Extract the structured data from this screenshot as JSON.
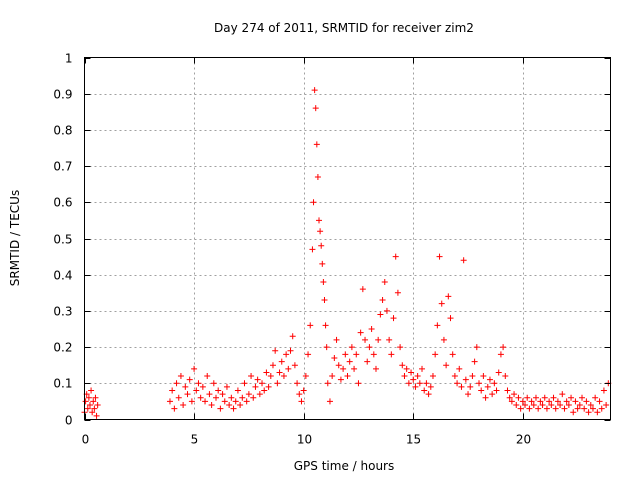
{
  "chart_data": {
    "type": "scatter",
    "title": "Day 274 of 2011, SRMTID for receiver zim2",
    "xlabel": "GPS time / hours",
    "ylabel": "SRMTID / TECUs",
    "xlim": [
      0,
      24
    ],
    "ylim": [
      0,
      1
    ],
    "x_ticks": [
      0,
      5,
      10,
      15,
      20
    ],
    "y_ticks": [
      0,
      0.1,
      0.2,
      0.3,
      0.4,
      0.5,
      0.6,
      0.7,
      0.8,
      0.9,
      1
    ],
    "y_tick_labels": [
      "0",
      "0.1",
      "0.2",
      "0.3",
      "0.4",
      "0.5",
      "0.6",
      "0.7",
      "0.8",
      "0.9",
      "1"
    ],
    "x_tick_labels": [
      "0",
      "5",
      "10",
      "15",
      "20"
    ],
    "grid": true,
    "marker": "+",
    "marker_color": "#ff0000",
    "series": [
      {
        "name": "zim2",
        "points": [
          [
            0.0,
            0.02
          ],
          [
            0.05,
            0.05
          ],
          [
            0.1,
            0.07
          ],
          [
            0.15,
            0.03
          ],
          [
            0.2,
            0.06
          ],
          [
            0.25,
            0.04
          ],
          [
            0.3,
            0.08
          ],
          [
            0.35,
            0.02
          ],
          [
            0.4,
            0.05
          ],
          [
            0.45,
            0.03
          ],
          [
            0.5,
            0.06
          ],
          [
            0.55,
            0.01
          ],
          [
            0.6,
            0.04
          ],
          [
            3.9,
            0.05
          ],
          [
            4.0,
            0.08
          ],
          [
            4.1,
            0.03
          ],
          [
            4.2,
            0.1
          ],
          [
            4.3,
            0.06
          ],
          [
            4.4,
            0.12
          ],
          [
            4.5,
            0.04
          ],
          [
            4.6,
            0.09
          ],
          [
            4.7,
            0.07
          ],
          [
            4.8,
            0.11
          ],
          [
            4.9,
            0.05
          ],
          [
            5.0,
            0.14
          ],
          [
            5.1,
            0.08
          ],
          [
            5.2,
            0.1
          ],
          [
            5.3,
            0.06
          ],
          [
            5.4,
            0.09
          ],
          [
            5.5,
            0.05
          ],
          [
            5.6,
            0.12
          ],
          [
            5.7,
            0.07
          ],
          [
            5.8,
            0.04
          ],
          [
            5.9,
            0.1
          ],
          [
            6.0,
            0.06
          ],
          [
            6.1,
            0.08
          ],
          [
            6.2,
            0.03
          ],
          [
            6.3,
            0.07
          ],
          [
            6.4,
            0.05
          ],
          [
            6.5,
            0.09
          ],
          [
            6.6,
            0.04
          ],
          [
            6.7,
            0.06
          ],
          [
            6.8,
            0.03
          ],
          [
            6.9,
            0.05
          ],
          [
            7.0,
            0.08
          ],
          [
            7.1,
            0.04
          ],
          [
            7.2,
            0.06
          ],
          [
            7.3,
            0.1
          ],
          [
            7.4,
            0.05
          ],
          [
            7.5,
            0.07
          ],
          [
            7.6,
            0.12
          ],
          [
            7.7,
            0.06
          ],
          [
            7.8,
            0.09
          ],
          [
            7.9,
            0.11
          ],
          [
            8.0,
            0.07
          ],
          [
            8.1,
            0.1
          ],
          [
            8.2,
            0.08
          ],
          [
            8.3,
            0.13
          ],
          [
            8.4,
            0.09
          ],
          [
            8.5,
            0.12
          ],
          [
            8.6,
            0.15
          ],
          [
            8.7,
            0.19
          ],
          [
            8.8,
            0.1
          ],
          [
            8.9,
            0.13
          ],
          [
            9.0,
            0.16
          ],
          [
            9.1,
            0.12
          ],
          [
            9.2,
            0.18
          ],
          [
            9.3,
            0.14
          ],
          [
            9.4,
            0.19
          ],
          [
            9.5,
            0.23
          ],
          [
            9.6,
            0.15
          ],
          [
            9.7,
            0.1
          ],
          [
            9.8,
            0.07
          ],
          [
            9.9,
            0.05
          ],
          [
            10.0,
            0.08
          ],
          [
            10.1,
            0.12
          ],
          [
            10.2,
            0.18
          ],
          [
            10.3,
            0.26
          ],
          [
            10.4,
            0.47
          ],
          [
            10.45,
            0.6
          ],
          [
            10.5,
            0.91
          ],
          [
            10.55,
            0.86
          ],
          [
            10.6,
            0.76
          ],
          [
            10.65,
            0.67
          ],
          [
            10.7,
            0.55
          ],
          [
            10.75,
            0.52
          ],
          [
            10.8,
            0.48
          ],
          [
            10.85,
            0.43
          ],
          [
            10.9,
            0.38
          ],
          [
            10.95,
            0.33
          ],
          [
            11.0,
            0.26
          ],
          [
            11.05,
            0.2
          ],
          [
            11.1,
            0.1
          ],
          [
            11.2,
            0.05
          ],
          [
            11.3,
            0.12
          ],
          [
            11.4,
            0.17
          ],
          [
            11.5,
            0.22
          ],
          [
            11.6,
            0.15
          ],
          [
            11.7,
            0.11
          ],
          [
            11.8,
            0.14
          ],
          [
            11.9,
            0.18
          ],
          [
            12.0,
            0.12
          ],
          [
            12.1,
            0.16
          ],
          [
            12.2,
            0.2
          ],
          [
            12.3,
            0.14
          ],
          [
            12.4,
            0.18
          ],
          [
            12.5,
            0.1
          ],
          [
            12.6,
            0.24
          ],
          [
            12.7,
            0.36
          ],
          [
            12.8,
            0.22
          ],
          [
            12.9,
            0.16
          ],
          [
            13.0,
            0.2
          ],
          [
            13.1,
            0.25
          ],
          [
            13.2,
            0.18
          ],
          [
            13.3,
            0.14
          ],
          [
            13.4,
            0.22
          ],
          [
            13.5,
            0.29
          ],
          [
            13.6,
            0.33
          ],
          [
            13.7,
            0.38
          ],
          [
            13.8,
            0.3
          ],
          [
            13.9,
            0.22
          ],
          [
            14.0,
            0.18
          ],
          [
            14.1,
            0.28
          ],
          [
            14.2,
            0.45
          ],
          [
            14.3,
            0.35
          ],
          [
            14.4,
            0.2
          ],
          [
            14.5,
            0.15
          ],
          [
            14.6,
            0.12
          ],
          [
            14.7,
            0.14
          ],
          [
            14.8,
            0.1
          ],
          [
            14.9,
            0.13
          ],
          [
            15.0,
            0.11
          ],
          [
            15.1,
            0.09
          ],
          [
            15.2,
            0.12
          ],
          [
            15.3,
            0.1
          ],
          [
            15.4,
            0.14
          ],
          [
            15.5,
            0.08
          ],
          [
            15.6,
            0.1
          ],
          [
            15.7,
            0.07
          ],
          [
            15.8,
            0.09
          ],
          [
            15.9,
            0.12
          ],
          [
            16.0,
            0.18
          ],
          [
            16.1,
            0.26
          ],
          [
            16.2,
            0.45
          ],
          [
            16.3,
            0.32
          ],
          [
            16.4,
            0.22
          ],
          [
            16.5,
            0.15
          ],
          [
            16.6,
            0.34
          ],
          [
            16.7,
            0.28
          ],
          [
            16.8,
            0.18
          ],
          [
            16.9,
            0.12
          ],
          [
            17.0,
            0.1
          ],
          [
            17.1,
            0.14
          ],
          [
            17.2,
            0.09
          ],
          [
            17.3,
            0.44
          ],
          [
            17.4,
            0.11
          ],
          [
            17.5,
            0.07
          ],
          [
            17.6,
            0.09
          ],
          [
            17.7,
            0.12
          ],
          [
            17.8,
            0.16
          ],
          [
            17.9,
            0.2
          ],
          [
            18.0,
            0.1
          ],
          [
            18.1,
            0.08
          ],
          [
            18.2,
            0.12
          ],
          [
            18.3,
            0.06
          ],
          [
            18.4,
            0.09
          ],
          [
            18.5,
            0.11
          ],
          [
            18.6,
            0.07
          ],
          [
            18.7,
            0.1
          ],
          [
            18.8,
            0.08
          ],
          [
            18.9,
            0.13
          ],
          [
            19.0,
            0.18
          ],
          [
            19.1,
            0.2
          ],
          [
            19.2,
            0.12
          ],
          [
            19.3,
            0.08
          ],
          [
            19.4,
            0.06
          ],
          [
            19.5,
            0.05
          ],
          [
            19.6,
            0.07
          ],
          [
            19.7,
            0.04
          ],
          [
            19.8,
            0.06
          ],
          [
            19.9,
            0.03
          ],
          [
            20.0,
            0.05
          ],
          [
            20.1,
            0.04
          ],
          [
            20.2,
            0.06
          ],
          [
            20.3,
            0.03
          ],
          [
            20.4,
            0.05
          ],
          [
            20.5,
            0.04
          ],
          [
            20.6,
            0.06
          ],
          [
            20.7,
            0.03
          ],
          [
            20.8,
            0.05
          ],
          [
            20.9,
            0.04
          ],
          [
            21.0,
            0.06
          ],
          [
            21.1,
            0.03
          ],
          [
            21.2,
            0.05
          ],
          [
            21.3,
            0.04
          ],
          [
            21.4,
            0.06
          ],
          [
            21.5,
            0.03
          ],
          [
            21.6,
            0.05
          ],
          [
            21.7,
            0.04
          ],
          [
            21.8,
            0.07
          ],
          [
            21.9,
            0.03
          ],
          [
            22.0,
            0.05
          ],
          [
            22.1,
            0.04
          ],
          [
            22.2,
            0.06
          ],
          [
            22.3,
            0.02
          ],
          [
            22.4,
            0.05
          ],
          [
            22.5,
            0.03
          ],
          [
            22.6,
            0.04
          ],
          [
            22.7,
            0.06
          ],
          [
            22.8,
            0.03
          ],
          [
            22.9,
            0.05
          ],
          [
            23.0,
            0.02
          ],
          [
            23.1,
            0.04
          ],
          [
            23.2,
            0.03
          ],
          [
            23.3,
            0.06
          ],
          [
            23.4,
            0.02
          ],
          [
            23.5,
            0.05
          ],
          [
            23.6,
            0.03
          ],
          [
            23.7,
            0.08
          ],
          [
            23.8,
            0.04
          ],
          [
            23.9,
            0.1
          ]
        ]
      }
    ]
  }
}
